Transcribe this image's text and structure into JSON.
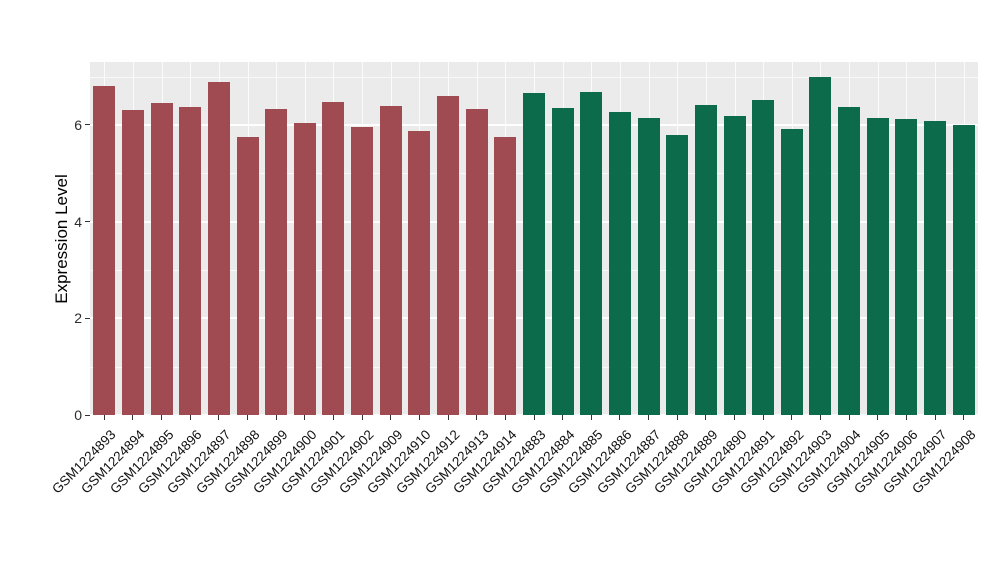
{
  "chart_data": {
    "type": "bar",
    "title": "",
    "xlabel": "",
    "ylabel": "Expression Level",
    "ylim": [
      0,
      7.3
    ],
    "yticks": [
      0,
      2,
      4,
      6
    ],
    "yticks_minor": [
      1,
      3,
      5,
      7
    ],
    "grid": true,
    "legend_position": "none",
    "panel_background": "#EBEBEB",
    "gridline_color": "#FFFFFF",
    "group_colors": {
      "group1": "#A04A52",
      "group2": "#0B6B4B"
    },
    "bars": [
      {
        "label": "GSM1224893",
        "value": 6.8,
        "group": "group1"
      },
      {
        "label": "GSM1224894",
        "value": 6.3,
        "group": "group1"
      },
      {
        "label": "GSM1224895",
        "value": 6.45,
        "group": "group1"
      },
      {
        "label": "GSM1224896",
        "value": 6.38,
        "group": "group1"
      },
      {
        "label": "GSM1224897",
        "value": 6.88,
        "group": "group1"
      },
      {
        "label": "GSM1224898",
        "value": 5.75,
        "group": "group1"
      },
      {
        "label": "GSM1224899",
        "value": 6.33,
        "group": "group1"
      },
      {
        "label": "GSM1224900",
        "value": 6.03,
        "group": "group1"
      },
      {
        "label": "GSM1224901",
        "value": 6.48,
        "group": "group1"
      },
      {
        "label": "GSM1224902",
        "value": 5.95,
        "group": "group1"
      },
      {
        "label": "GSM1224909",
        "value": 6.4,
        "group": "group1"
      },
      {
        "label": "GSM1224910",
        "value": 5.88,
        "group": "group1"
      },
      {
        "label": "GSM1224912",
        "value": 6.6,
        "group": "group1"
      },
      {
        "label": "GSM1224913",
        "value": 6.33,
        "group": "group1"
      },
      {
        "label": "GSM1224914",
        "value": 5.75,
        "group": "group1"
      },
      {
        "label": "GSM1224883",
        "value": 6.65,
        "group": "group2"
      },
      {
        "label": "GSM1224884",
        "value": 6.35,
        "group": "group2"
      },
      {
        "label": "GSM1224885",
        "value": 6.67,
        "group": "group2"
      },
      {
        "label": "GSM1224886",
        "value": 6.27,
        "group": "group2"
      },
      {
        "label": "GSM1224887",
        "value": 6.15,
        "group": "group2"
      },
      {
        "label": "GSM1224888",
        "value": 5.8,
        "group": "group2"
      },
      {
        "label": "GSM1224889",
        "value": 6.42,
        "group": "group2"
      },
      {
        "label": "GSM1224890",
        "value": 6.18,
        "group": "group2"
      },
      {
        "label": "GSM1224891",
        "value": 6.52,
        "group": "group2"
      },
      {
        "label": "GSM1224892",
        "value": 5.92,
        "group": "group2"
      },
      {
        "label": "GSM1224903",
        "value": 7.0,
        "group": "group2"
      },
      {
        "label": "GSM1224904",
        "value": 6.37,
        "group": "group2"
      },
      {
        "label": "GSM1224905",
        "value": 6.15,
        "group": "group2"
      },
      {
        "label": "GSM1224906",
        "value": 6.12,
        "group": "group2"
      },
      {
        "label": "GSM1224907",
        "value": 6.07,
        "group": "group2"
      },
      {
        "label": "GSM1224908",
        "value": 6.0,
        "group": "group2"
      }
    ]
  }
}
